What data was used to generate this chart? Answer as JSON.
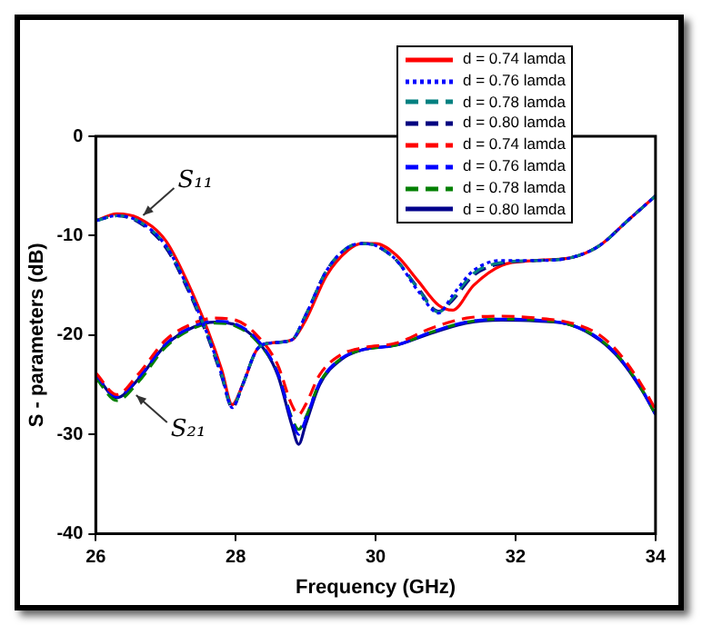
{
  "chart_data": {
    "type": "line",
    "xlabel": "Frequency (GHz)",
    "ylabel": "S - parameters (dB)",
    "xlim": [
      26,
      34
    ],
    "xticks": [
      26,
      28,
      30,
      32,
      34
    ],
    "ylim": [
      -40,
      0
    ],
    "yticks": [
      0,
      -10,
      -20,
      -30,
      -40
    ],
    "grid": false,
    "legend": "top right",
    "marker": "none",
    "annotations": [
      {
        "text": "S₁₁",
        "x": 26.6,
        "y": -8.5
      },
      {
        "text": "S₂₁",
        "x": 26.5,
        "y": -25.5
      }
    ],
    "series": [
      {
        "name": "d = 0.74 lamda",
        "color": "#ff0000",
        "line_style": "solid",
        "x": [
          26,
          26.3,
          26.6,
          27,
          27.3,
          27.6,
          27.8,
          27.95,
          28.1,
          28.3,
          28.5,
          28.8,
          29,
          29.3,
          29.6,
          29.8,
          30,
          30.3,
          30.6,
          30.9,
          31.1,
          31.4,
          31.8,
          32.3,
          32.8,
          33.2,
          33.6,
          34
        ],
        "values": [
          -8.5,
          -7.8,
          -8.2,
          -10.5,
          -14.5,
          -19.5,
          -23.5,
          -27,
          -25,
          -21.5,
          -20.8,
          -20.5,
          -18.5,
          -14,
          -11.5,
          -10.8,
          -10.8,
          -12,
          -14.5,
          -17,
          -17.5,
          -15,
          -13,
          -12.5,
          -12.2,
          -11,
          -8.5,
          -6
        ]
      },
      {
        "name": "d = 0.76 lamda",
        "color": "#0000ff",
        "line_style": "dotted",
        "x": [
          26,
          26.3,
          26.6,
          27,
          27.3,
          27.6,
          27.8,
          27.95,
          28.1,
          28.3,
          28.5,
          28.8,
          29,
          29.3,
          29.6,
          29.8,
          30,
          30.3,
          30.6,
          30.9,
          31.1,
          31.4,
          31.8,
          32.3,
          32.8,
          33.2,
          33.6,
          34
        ],
        "values": [
          -8.5,
          -8,
          -8.5,
          -11,
          -15,
          -20,
          -24,
          -27.3,
          -25,
          -21.5,
          -20.8,
          -20.5,
          -18,
          -13.5,
          -11.2,
          -10.8,
          -11,
          -12.5,
          -15.5,
          -17.8,
          -16,
          -13.5,
          -12.5,
          -12.5,
          -12.2,
          -11,
          -8.5,
          -6
        ]
      },
      {
        "name": "d = 0.78 lamda",
        "color": "#008080",
        "line_style": "dashed",
        "x": [
          26,
          26.3,
          26.6,
          27,
          27.3,
          27.6,
          27.8,
          27.95,
          28.1,
          28.3,
          28.5,
          28.8,
          29,
          29.3,
          29.6,
          29.8,
          30,
          30.3,
          30.6,
          30.9,
          31.1,
          31.4,
          31.8,
          32.3,
          32.8,
          33.2,
          33.6,
          34
        ],
        "values": [
          -8.5,
          -8,
          -8.5,
          -11,
          -15,
          -20,
          -24,
          -27.2,
          -25,
          -21.5,
          -20.8,
          -20.5,
          -18,
          -13.5,
          -11.2,
          -10.8,
          -11,
          -12.5,
          -15.3,
          -17.7,
          -16.3,
          -13.8,
          -12.7,
          -12.5,
          -12.2,
          -11,
          -8.5,
          -6
        ]
      },
      {
        "name": "d = 0.80 lamda",
        "color": "#000080",
        "line_style": "dashed",
        "x": [
          26,
          26.3,
          26.6,
          27,
          27.3,
          27.6,
          27.8,
          27.95,
          28.1,
          28.3,
          28.5,
          28.8,
          29,
          29.3,
          29.6,
          29.8,
          30,
          30.3,
          30.6,
          30.9,
          31.1,
          31.4,
          31.8,
          32.3,
          32.8,
          33.2,
          33.6,
          34
        ],
        "values": [
          -8.5,
          -8,
          -8.6,
          -11.2,
          -15.2,
          -20.2,
          -24.2,
          -27.3,
          -25,
          -21.5,
          -20.8,
          -20.5,
          -18,
          -13.5,
          -11.2,
          -10.8,
          -11,
          -12.5,
          -15.2,
          -17.6,
          -16.5,
          -14,
          -12.8,
          -12.5,
          -12.2,
          -11,
          -8.5,
          -6
        ]
      },
      {
        "name": "d = 0.74 lamda",
        "color": "#ff0000",
        "line_style": "dashed",
        "x": [
          26,
          26.3,
          26.6,
          27,
          27.4,
          27.7,
          28,
          28.3,
          28.6,
          28.8,
          28.9,
          29,
          29.2,
          29.5,
          29.8,
          30.3,
          30.8,
          31.3,
          31.8,
          32.3,
          32.8,
          33.2,
          33.5,
          33.8,
          34
        ],
        "values": [
          -23.8,
          -26,
          -24,
          -20.5,
          -18.8,
          -18.3,
          -18.5,
          -20,
          -23,
          -27,
          -28,
          -27,
          -24,
          -22,
          -21.3,
          -20.8,
          -19.3,
          -18.3,
          -18.1,
          -18.3,
          -18.8,
          -20,
          -22,
          -25,
          -27.5
        ]
      },
      {
        "name": "d = 0.76 lamda",
        "color": "#0000ff",
        "line_style": "dashed",
        "x": [
          26,
          26.3,
          26.6,
          27,
          27.4,
          27.7,
          28,
          28.3,
          28.6,
          28.8,
          28.9,
          29,
          29.2,
          29.5,
          29.8,
          30.3,
          30.8,
          31.3,
          31.8,
          32.3,
          32.8,
          33.2,
          33.5,
          33.8,
          34
        ],
        "values": [
          -24,
          -26.2,
          -24.4,
          -20.9,
          -19.1,
          -18.6,
          -18.9,
          -20.4,
          -23.8,
          -28.5,
          -30,
          -28.5,
          -24.8,
          -22.4,
          -21.5,
          -21,
          -19.7,
          -18.7,
          -18.4,
          -18.5,
          -19,
          -20.4,
          -22.4,
          -25.4,
          -28
        ]
      },
      {
        "name": "d = 0.78 lamda",
        "color": "#008000",
        "line_style": "dashed",
        "x": [
          26,
          26.3,
          26.6,
          27,
          27.4,
          27.7,
          28,
          28.3,
          28.6,
          28.8,
          28.9,
          29,
          29.2,
          29.5,
          29.8,
          30.3,
          30.8,
          31.3,
          31.8,
          32.3,
          32.8,
          33.2,
          33.5,
          33.8,
          34
        ],
        "values": [
          -24.3,
          -26.6,
          -24.8,
          -21.2,
          -19.3,
          -18.8,
          -19.1,
          -20.6,
          -23.8,
          -28.3,
          -29.5,
          -28.3,
          -24.8,
          -22.4,
          -21.5,
          -21,
          -19.7,
          -18.7,
          -18.4,
          -18.5,
          -19,
          -20.4,
          -22.4,
          -25.4,
          -28
        ]
      },
      {
        "name": "d = 0.80 lamda",
        "color": "#00008b",
        "line_style": "solid",
        "x": [
          26,
          26.3,
          26.6,
          27,
          27.4,
          27.7,
          28,
          28.3,
          28.6,
          28.8,
          28.9,
          29,
          29.2,
          29.5,
          29.8,
          30.3,
          30.8,
          31.3,
          31.8,
          32.3,
          32.8,
          33.2,
          33.5,
          33.8,
          34
        ],
        "values": [
          -24,
          -26.3,
          -24.5,
          -21,
          -19.2,
          -18.7,
          -19,
          -20.5,
          -24,
          -29,
          -31,
          -29,
          -25,
          -22.5,
          -21.5,
          -21,
          -19.8,
          -18.8,
          -18.5,
          -18.6,
          -19,
          -20.5,
          -22.5,
          -25.5,
          -28
        ]
      }
    ]
  }
}
